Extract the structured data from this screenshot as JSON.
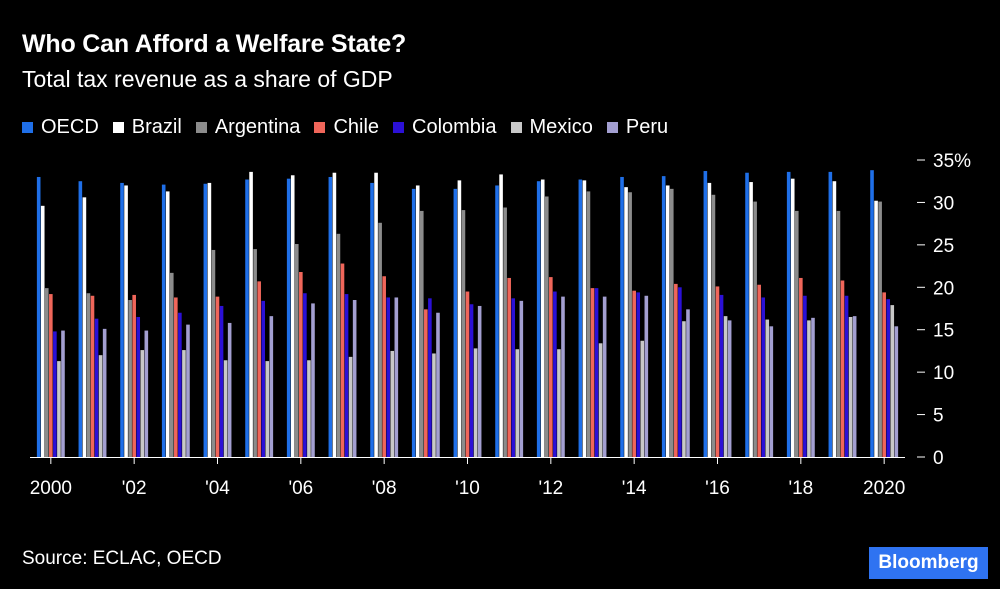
{
  "header": {
    "title": "Who Can Afford a Welfare State?",
    "subtitle": "Total tax revenue as a share of GDP"
  },
  "footer": {
    "source": "Source: ECLAC, OECD",
    "brand": "Bloomberg"
  },
  "chart_data": {
    "type": "bar",
    "title": "Who Can Afford a Welfare State?",
    "subtitle": "Total tax revenue as a share of GDP",
    "xlabel": "",
    "ylabel": "",
    "ylim": [
      0,
      35
    ],
    "yticks": [
      0,
      5,
      10,
      15,
      20,
      25,
      30,
      35
    ],
    "ytick_labels": [
      "0",
      "5",
      "10",
      "15",
      "20",
      "25",
      "30",
      "35%"
    ],
    "legend_position": "top-left",
    "categories": [
      "2000",
      "2001",
      "2002",
      "2003",
      "2004",
      "2005",
      "2006",
      "2007",
      "2008",
      "2009",
      "2010",
      "2011",
      "2012",
      "2013",
      "2014",
      "2015",
      "2016",
      "2017",
      "2018",
      "2019",
      "2020"
    ],
    "xtick_labels": [
      "2000",
      "",
      "'02",
      "",
      "'04",
      "",
      "'06",
      "",
      "'08",
      "",
      "'10",
      "",
      "'12",
      "",
      "'14",
      "",
      "'16",
      "",
      "'18",
      "",
      "2020"
    ],
    "series": [
      {
        "name": "OECD",
        "color": "#1f6fe8",
        "values": [
          33.0,
          32.5,
          32.3,
          32.1,
          32.2,
          32.7,
          32.8,
          33.0,
          32.3,
          31.6,
          31.6,
          32.0,
          32.5,
          32.7,
          33.0,
          33.1,
          33.7,
          33.5,
          33.6,
          33.6,
          33.8
        ]
      },
      {
        "name": "Brazil",
        "color": "#ffffff",
        "values": [
          29.6,
          30.6,
          32.0,
          31.3,
          32.3,
          33.6,
          33.2,
          33.5,
          33.5,
          32.0,
          32.6,
          33.3,
          32.7,
          32.6,
          31.8,
          32.0,
          32.3,
          32.4,
          32.8,
          32.5,
          30.2
        ]
      },
      {
        "name": "Argentina",
        "color": "#8c8c8c",
        "values": [
          19.9,
          19.3,
          18.5,
          21.7,
          24.4,
          24.5,
          25.1,
          26.3,
          27.6,
          29.0,
          29.1,
          29.4,
          30.7,
          31.3,
          31.2,
          31.6,
          30.9,
          30.1,
          29.0,
          29.0,
          30.1
        ]
      },
      {
        "name": "Chile",
        "color": "#f0665a",
        "values": [
          19.2,
          19.0,
          19.1,
          18.8,
          18.9,
          20.7,
          21.8,
          22.8,
          21.3,
          17.4,
          19.5,
          21.1,
          21.2,
          19.9,
          19.6,
          20.4,
          20.1,
          20.3,
          21.1,
          20.8,
          19.4
        ]
      },
      {
        "name": "Colombia",
        "color": "#2b10d6",
        "values": [
          14.8,
          16.3,
          16.5,
          17.0,
          17.8,
          18.4,
          19.3,
          19.2,
          18.8,
          18.7,
          18.0,
          18.7,
          19.5,
          19.9,
          19.4,
          20.0,
          19.1,
          18.8,
          19.0,
          19.0,
          18.6
        ]
      },
      {
        "name": "Mexico",
        "color": "#c8c8c8",
        "values": [
          11.3,
          12.0,
          12.6,
          12.6,
          11.4,
          11.3,
          11.4,
          11.8,
          12.5,
          12.2,
          12.8,
          12.7,
          12.7,
          13.4,
          13.7,
          16.0,
          16.6,
          16.2,
          16.1,
          16.5,
          17.9
        ]
      },
      {
        "name": "Peru",
        "color": "#a39fd1",
        "values": [
          14.9,
          15.1,
          14.9,
          15.6,
          15.8,
          16.6,
          18.1,
          18.5,
          18.8,
          17.0,
          17.8,
          18.4,
          18.9,
          18.9,
          19.0,
          17.4,
          16.1,
          15.4,
          16.4,
          16.6,
          15.4
        ]
      }
    ]
  }
}
